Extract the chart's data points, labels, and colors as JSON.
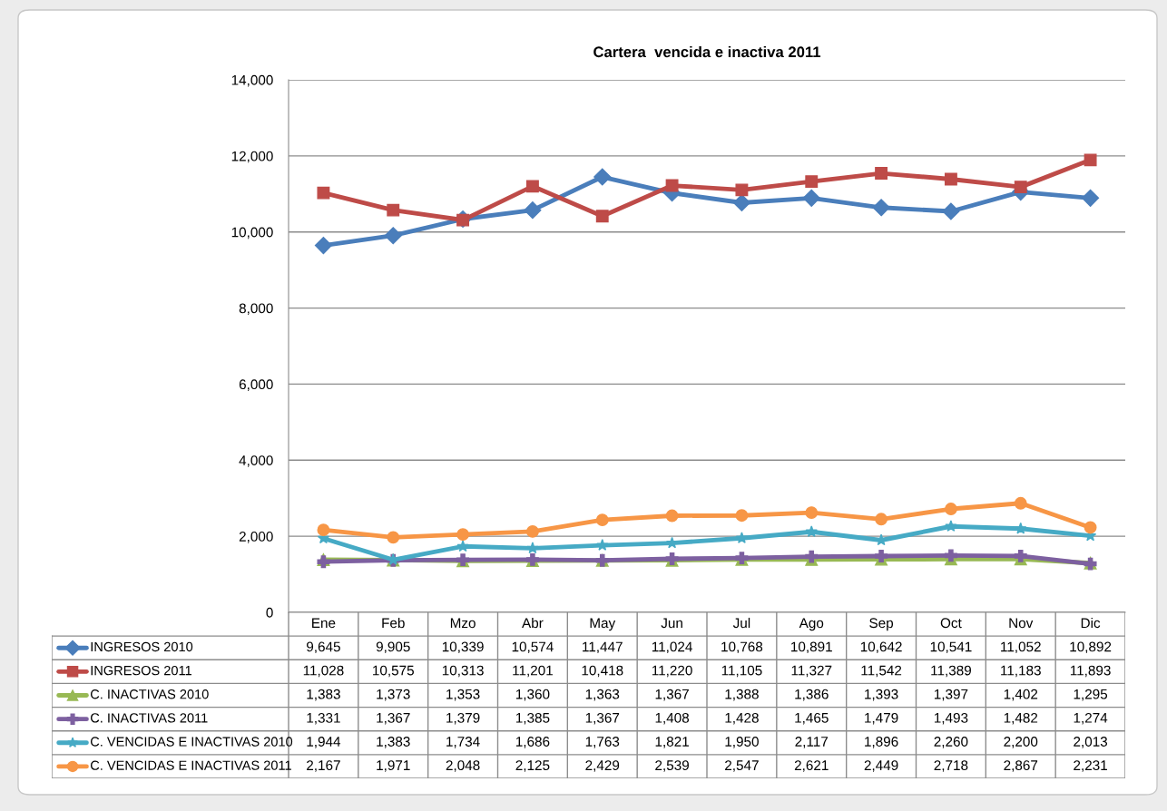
{
  "chart_data": {
    "type": "line",
    "title": "Cartera  vencida e inactiva 2011",
    "categories": [
      "Ene",
      "Feb",
      "Mzo",
      "Abr",
      "May",
      "Jun",
      "Jul",
      "Ago",
      "Sep",
      "Oct",
      "Nov",
      "Dic"
    ],
    "series": [
      {
        "name": "INGRESOS 2010",
        "color": "#4a7ebb",
        "marker": "diamond",
        "values": [
          9645,
          9905,
          10339,
          10574,
          11447,
          11024,
          10768,
          10891,
          10642,
          10541,
          11052,
          10892
        ],
        "value_labels": [
          "9,645",
          "9,905",
          "10,339",
          "10,574",
          "11,447",
          "11,024",
          "10,768",
          "10,891",
          "10,642",
          "10,541",
          "11,052",
          "10,892"
        ]
      },
      {
        "name": "INGRESOS 2011",
        "color": "#be4b48",
        "marker": "square",
        "values": [
          11028,
          10575,
          10313,
          11201,
          10418,
          11220,
          11105,
          11327,
          11542,
          11389,
          11183,
          11893
        ],
        "value_labels": [
          "11,028",
          "10,575",
          "10,313",
          "11,201",
          "10,418",
          "11,220",
          "11,105",
          "11,327",
          "11,542",
          "11,389",
          "11,183",
          "11,893"
        ]
      },
      {
        "name": "C. INACTIVAS 2010",
        "color": "#98b954",
        "marker": "triangle",
        "values": [
          1383,
          1373,
          1353,
          1360,
          1363,
          1367,
          1388,
          1386,
          1393,
          1397,
          1402,
          1295
        ],
        "value_labels": [
          "1,383",
          "1,373",
          "1,353",
          "1,360",
          "1,363",
          "1,367",
          "1,388",
          "1,386",
          "1,393",
          "1,397",
          "1,402",
          "1,295"
        ]
      },
      {
        "name": "C. INACTIVAS 2011",
        "color": "#7d60a0",
        "marker": "cross",
        "values": [
          1331,
          1367,
          1379,
          1385,
          1367,
          1408,
          1428,
          1465,
          1479,
          1493,
          1482,
          1274
        ],
        "value_labels": [
          "1,331",
          "1,367",
          "1,379",
          "1,385",
          "1,367",
          "1,408",
          "1,428",
          "1,465",
          "1,479",
          "1,493",
          "1,482",
          "1,274"
        ]
      },
      {
        "name": "C. VENCIDAS E INACTIVAS 2010",
        "color": "#46aac5",
        "marker": "star",
        "values": [
          1944,
          1383,
          1734,
          1686,
          1763,
          1821,
          1950,
          2117,
          1896,
          2260,
          2200,
          2013
        ],
        "value_labels": [
          "1,944",
          "1,383",
          "1,734",
          "1,686",
          "1,763",
          "1,821",
          "1,950",
          "2,117",
          "1,896",
          "2,260",
          "2,200",
          "2,013"
        ]
      },
      {
        "name": "C. VENCIDAS E INACTIVAS 2011",
        "color": "#f79646",
        "marker": "circle",
        "values": [
          2167,
          1971,
          2048,
          2125,
          2429,
          2539,
          2547,
          2621,
          2449,
          2718,
          2867,
          2231
        ],
        "value_labels": [
          "2,167",
          "1,971",
          "2,048",
          "2,125",
          "2,429",
          "2,539",
          "2,547",
          "2,621",
          "2,449",
          "2,718",
          "2,867",
          "2,231"
        ]
      }
    ],
    "ylim": [
      0,
      14000
    ],
    "yticks": [
      {
        "value": 0,
        "label": "0"
      },
      {
        "value": 2000,
        "label": "2,000"
      },
      {
        "value": 4000,
        "label": "4,000"
      },
      {
        "value": 6000,
        "label": "6,000"
      },
      {
        "value": 8000,
        "label": "8,000"
      },
      {
        "value": 10000,
        "label": "10,000"
      },
      {
        "value": 12000,
        "label": "12,000"
      },
      {
        "value": 14000,
        "label": "14,000"
      }
    ],
    "grid": "y",
    "tick_labels": "y",
    "legend": "bottom left",
    "line_style": "solid"
  }
}
